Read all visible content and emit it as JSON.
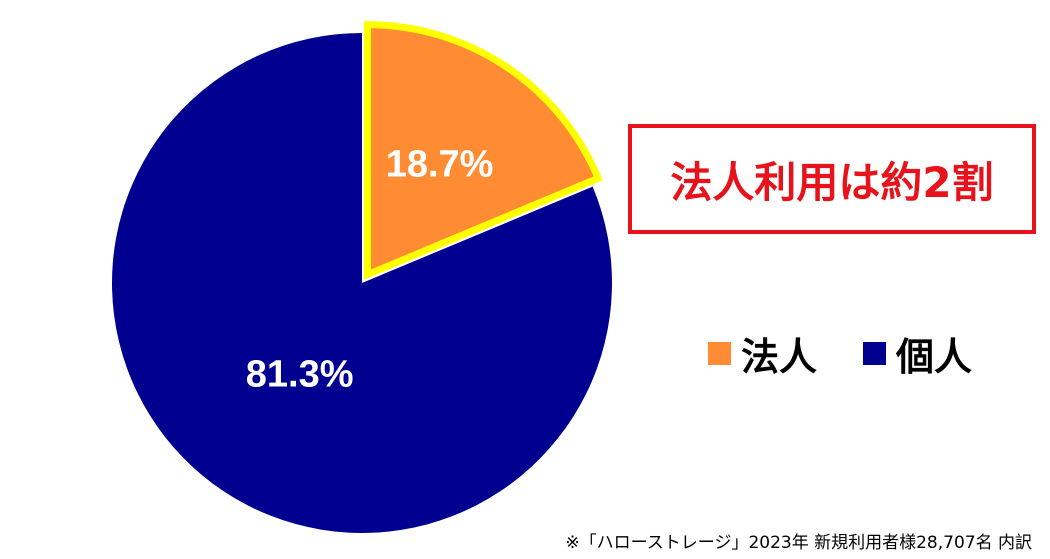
{
  "chart_data": {
    "type": "pie",
    "slices": [
      {
        "label": "法人",
        "value": 18.7,
        "value_label": "18.7%",
        "color": "#ff8c33",
        "highlight_color": "#ffff00"
      },
      {
        "label": "個人",
        "value": 81.3,
        "value_label": "81.3%",
        "color": "#000090"
      }
    ],
    "legend": [
      {
        "label": "法人",
        "color": "#ff8c33"
      },
      {
        "label": "個人",
        "color": "#000090"
      }
    ],
    "legend_position": "right"
  },
  "callout": "法人利用は約2割",
  "footnote": "※「ハローストレージ」2023年 新規利用者様28,707名 内訳",
  "colors": {
    "callout_red": "#e8121a",
    "slice_label": "#ffffff"
  }
}
